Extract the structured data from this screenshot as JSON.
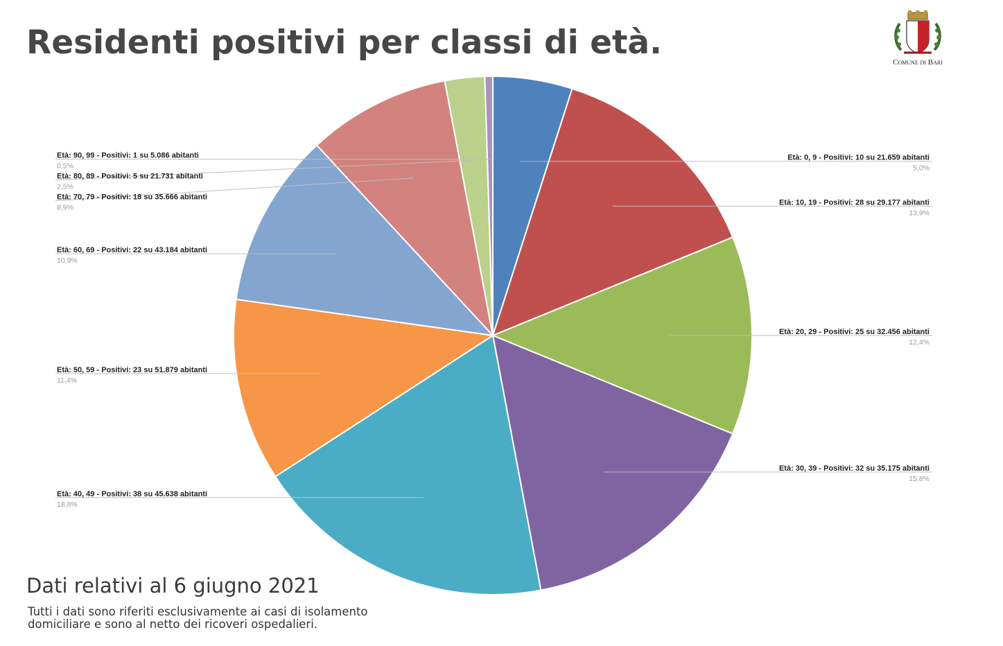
{
  "header": {
    "title": "Residenti positivi per classi di età."
  },
  "logo": {
    "text": "Comune di Bari"
  },
  "footer": {
    "date": "Dati relativi al 6 giugno 2021",
    "note": "Tutti i dati sono riferiti esclusivamente ai casi di isolamento domiciliare e sono al netto dei ricoveri ospedalieri."
  },
  "chart_data": {
    "type": "pie",
    "title": "Residenti positivi per classi di età.",
    "start_angle_deg": 0,
    "direction": "clockwise",
    "slices": [
      {
        "label": "Età: 0, 9 - Positivi: 10 su 21.659 abitanti",
        "value": 10,
        "percent_label": "5,0%",
        "color": "#4f81bd",
        "side": "right"
      },
      {
        "label": "Età: 10, 19 - Positivi: 28 su 29.177 abitanti",
        "value": 28,
        "percent_label": "13,9%",
        "color": "#c0504d",
        "side": "right"
      },
      {
        "label": "Età: 20, 29 - Positivi: 25 su 32.456 abitanti",
        "value": 25,
        "percent_label": "12,4%",
        "color": "#9bbb59",
        "side": "right"
      },
      {
        "label": "Età: 30, 39 - Positivi: 32 su 35.175 abitanti",
        "value": 32,
        "percent_label": "15,8%",
        "color": "#8064a2",
        "side": "right"
      },
      {
        "label": "Età: 40, 49 - Positivi: 38 su 45.638 abitanti",
        "value": 38,
        "percent_label": "18,8%",
        "color": "#4bacc6",
        "side": "left"
      },
      {
        "label": "Età: 50, 59 - Positivi: 23 su 51.879 abitanti",
        "value": 23,
        "percent_label": "11,4%",
        "color": "#f79646",
        "side": "left"
      },
      {
        "label": "Età: 60, 69 - Positivi: 22 su 43.184 abitanti",
        "value": 22,
        "percent_label": "10,9%",
        "color": "#84a5d0",
        "side": "left"
      },
      {
        "label": "Età: 70, 79 - Positivi: 18 su 35.666 abitanti",
        "value": 18,
        "percent_label": "8,9%",
        "color": "#d3837f",
        "side": "left"
      },
      {
        "label": "Età: 80, 89 - Positivi: 5 su 21.731 abitanti",
        "value": 5,
        "percent_label": "2,5%",
        "color": "#bad08b",
        "side": "left"
      },
      {
        "label": "Età: 90, 99 - Positivi: 1 su 5.086 abitanti",
        "value": 1,
        "percent_label": "0,5%",
        "color": "#a693be",
        "side": "left"
      }
    ]
  }
}
